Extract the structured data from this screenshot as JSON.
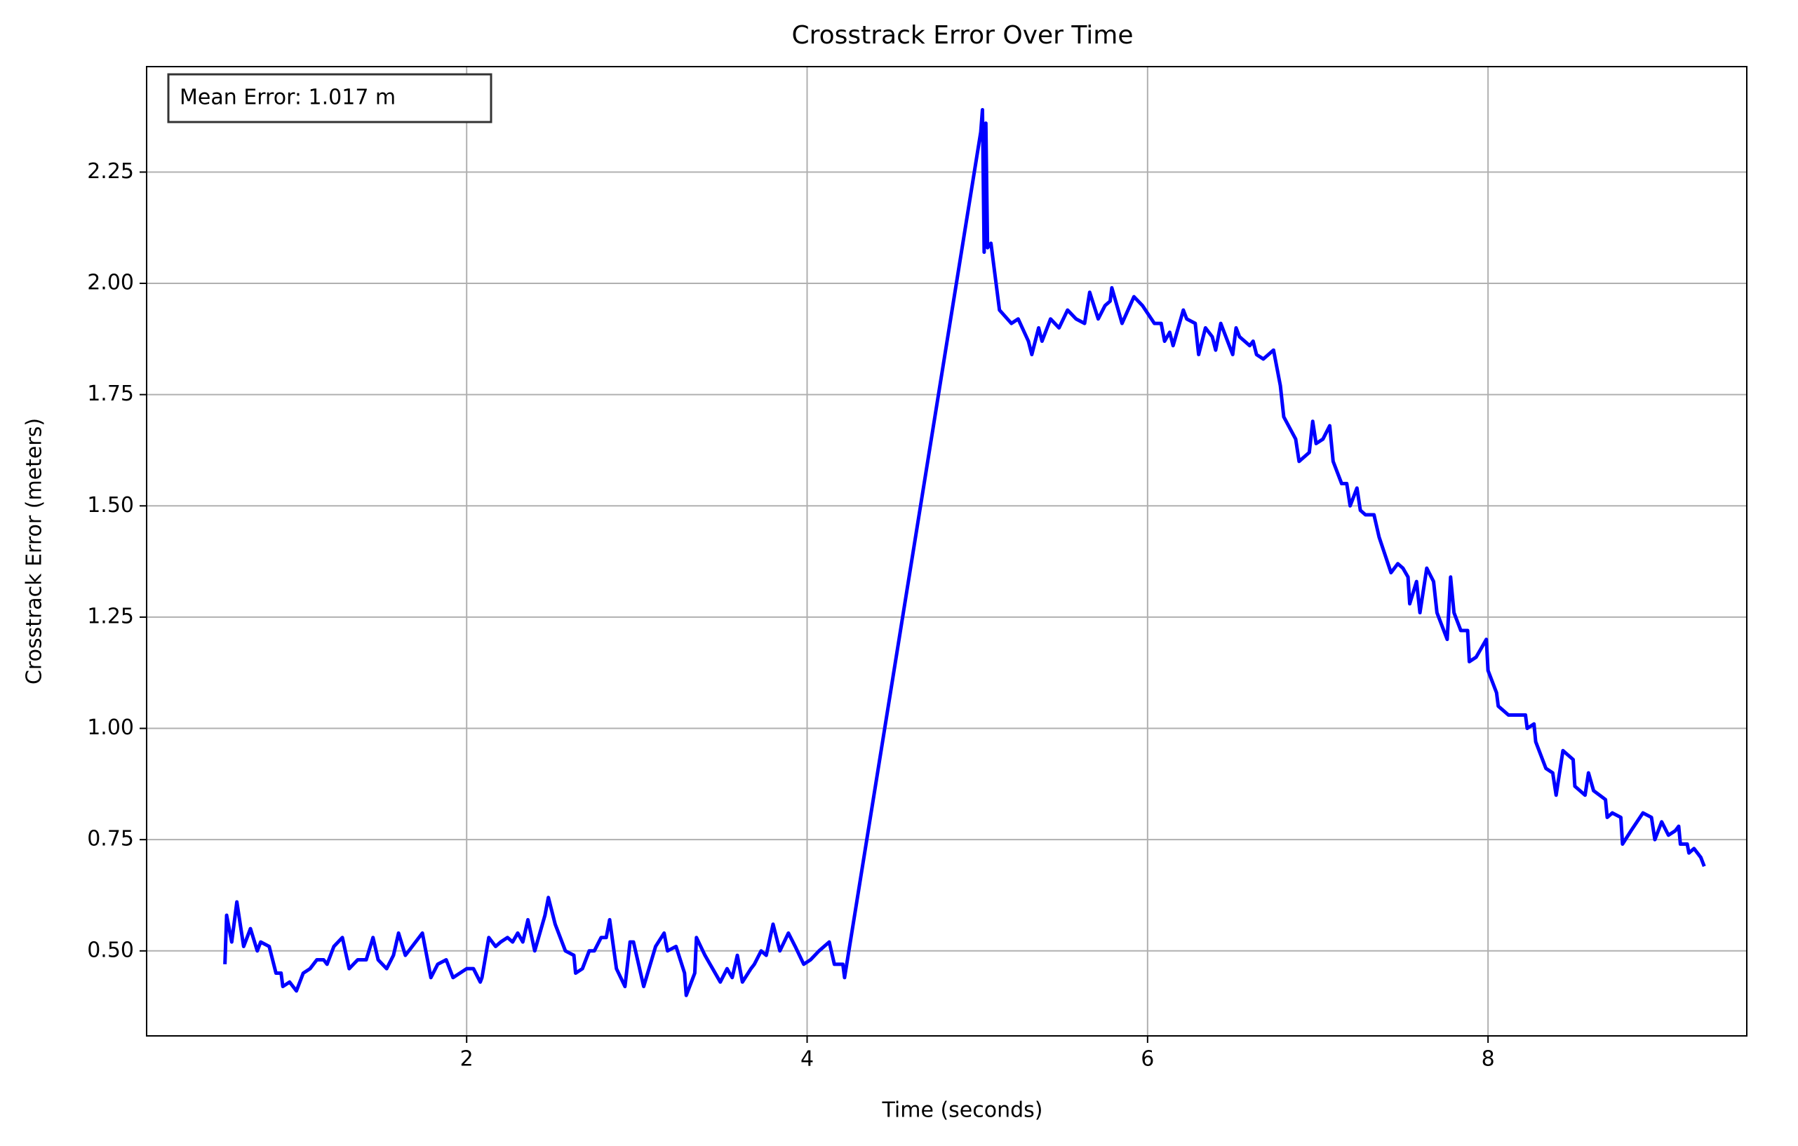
{
  "chart_data": {
    "type": "line",
    "title": "Crosstrack Error Over Time",
    "x_label": "Time (seconds)",
    "y_label": "Crosstrack Error (meters)",
    "annotation": "Mean Error: 1.017 m",
    "xlim": [
      0.12,
      9.52
    ],
    "ylim": [
      0.309,
      2.487
    ],
    "xticks": [
      2,
      4,
      6,
      8
    ],
    "yticks": [
      {
        "value": 0.5,
        "label": "0.50"
      },
      {
        "value": 0.75,
        "label": "0.75"
      },
      {
        "value": 1.0,
        "label": "1.00"
      },
      {
        "value": 1.25,
        "label": "1.25"
      },
      {
        "value": 1.5,
        "label": "1.50"
      },
      {
        "value": 1.75,
        "label": "1.75"
      },
      {
        "value": 2.0,
        "label": "2.00"
      },
      {
        "value": 2.25,
        "label": "2.25"
      }
    ],
    "grid": true,
    "series": [
      {
        "color": "#0000ff",
        "x": [
          0.58,
          0.59,
          0.62,
          0.65,
          0.69,
          0.73,
          0.77,
          0.79,
          0.84,
          0.88,
          0.91,
          0.92,
          0.96,
          1.0,
          1.04,
          1.08,
          1.12,
          1.16,
          1.18,
          1.22,
          1.27,
          1.31,
          1.36,
          1.41,
          1.45,
          1.48,
          1.53,
          1.57,
          1.6,
          1.64,
          1.68,
          1.72,
          1.74,
          1.79,
          1.83,
          1.88,
          1.92,
          1.96,
          2.0,
          2.04,
          2.08,
          2.09,
          2.13,
          2.17,
          2.2,
          2.24,
          2.27,
          2.3,
          2.33,
          2.36,
          2.4,
          2.46,
          2.48,
          2.52,
          2.58,
          2.63,
          2.64,
          2.68,
          2.72,
          2.75,
          2.79,
          2.82,
          2.84,
          2.88,
          2.93,
          2.96,
          2.98,
          3.04,
          3.11,
          3.16,
          3.18,
          3.23,
          3.28,
          3.29,
          3.34,
          3.35,
          3.4,
          3.43,
          3.49,
          3.53,
          3.56,
          3.59,
          3.62,
          3.67,
          3.69,
          3.73,
          3.76,
          3.8,
          3.84,
          3.89,
          3.93,
          3.98,
          4.02,
          4.07,
          4.13,
          4.16,
          4.21,
          4.22,
          5.02,
          5.03,
          5.04,
          5.05,
          5.06,
          5.08,
          5.13,
          5.2,
          5.24,
          5.3,
          5.32,
          5.36,
          5.38,
          5.43,
          5.48,
          5.53,
          5.58,
          5.63,
          5.66,
          5.71,
          5.75,
          5.78,
          5.79,
          5.85,
          5.92,
          5.97,
          6.04,
          6.08,
          6.1,
          6.13,
          6.15,
          6.21,
          6.23,
          6.28,
          6.3,
          6.34,
          6.38,
          6.4,
          6.43,
          6.5,
          6.52,
          6.54,
          6.6,
          6.62,
          6.64,
          6.68,
          6.74,
          6.78,
          6.8,
          6.87,
          6.89,
          6.95,
          6.97,
          6.99,
          7.03,
          7.07,
          7.09,
          7.14,
          7.17,
          7.19,
          7.23,
          7.25,
          7.28,
          7.33,
          7.36,
          7.43,
          7.47,
          7.5,
          7.53,
          7.54,
          7.58,
          7.6,
          7.64,
          7.68,
          7.7,
          7.76,
          7.78,
          7.8,
          7.84,
          7.88,
          7.89,
          7.93,
          7.99,
          8.0,
          8.05,
          8.06,
          8.12,
          8.18,
          8.22,
          8.23,
          8.27,
          8.28,
          8.34,
          8.38,
          8.4,
          8.44,
          8.5,
          8.51,
          8.57,
          8.59,
          8.62,
          8.69,
          8.7,
          8.73,
          8.78,
          8.79,
          8.84,
          8.91,
          8.96,
          8.98,
          9.02,
          9.06,
          9.1,
          9.12,
          9.13,
          9.17,
          9.18,
          9.21,
          9.25,
          9.27
        ],
        "values": [
          0.47,
          0.58,
          0.52,
          0.61,
          0.51,
          0.55,
          0.5,
          0.52,
          0.51,
          0.45,
          0.45,
          0.42,
          0.43,
          0.41,
          0.45,
          0.46,
          0.48,
          0.48,
          0.47,
          0.51,
          0.53,
          0.46,
          0.48,
          0.48,
          0.53,
          0.48,
          0.46,
          0.49,
          0.54,
          0.49,
          0.51,
          0.53,
          0.54,
          0.44,
          0.47,
          0.48,
          0.44,
          0.45,
          0.46,
          0.46,
          0.43,
          0.44,
          0.53,
          0.51,
          0.52,
          0.53,
          0.52,
          0.54,
          0.52,
          0.57,
          0.5,
          0.58,
          0.62,
          0.56,
          0.5,
          0.49,
          0.45,
          0.46,
          0.5,
          0.5,
          0.53,
          0.53,
          0.57,
          0.46,
          0.42,
          0.52,
          0.52,
          0.42,
          0.51,
          0.54,
          0.5,
          0.51,
          0.45,
          0.4,
          0.45,
          0.53,
          0.49,
          0.47,
          0.43,
          0.46,
          0.44,
          0.49,
          0.43,
          0.46,
          0.47,
          0.5,
          0.49,
          0.56,
          0.5,
          0.54,
          0.51,
          0.47,
          0.48,
          0.5,
          0.52,
          0.47,
          0.47,
          0.44,
          2.34,
          2.39,
          2.07,
          2.36,
          2.08,
          2.09,
          1.94,
          1.91,
          1.92,
          1.87,
          1.84,
          1.9,
          1.87,
          1.92,
          1.9,
          1.94,
          1.92,
          1.91,
          1.98,
          1.92,
          1.95,
          1.96,
          1.99,
          1.91,
          1.97,
          1.95,
          1.91,
          1.91,
          1.87,
          1.89,
          1.86,
          1.94,
          1.92,
          1.91,
          1.84,
          1.9,
          1.88,
          1.85,
          1.91,
          1.84,
          1.9,
          1.88,
          1.86,
          1.87,
          1.84,
          1.83,
          1.85,
          1.77,
          1.7,
          1.65,
          1.6,
          1.62,
          1.69,
          1.64,
          1.65,
          1.68,
          1.6,
          1.55,
          1.55,
          1.5,
          1.54,
          1.49,
          1.48,
          1.48,
          1.43,
          1.35,
          1.37,
          1.36,
          1.34,
          1.28,
          1.33,
          1.26,
          1.36,
          1.33,
          1.26,
          1.2,
          1.34,
          1.26,
          1.22,
          1.22,
          1.15,
          1.16,
          1.2,
          1.13,
          1.08,
          1.05,
          1.03,
          1.03,
          1.03,
          1.0,
          1.01,
          0.97,
          0.91,
          0.9,
          0.85,
          0.95,
          0.93,
          0.87,
          0.85,
          0.9,
          0.86,
          0.84,
          0.8,
          0.81,
          0.8,
          0.74,
          0.77,
          0.81,
          0.8,
          0.75,
          0.79,
          0.76,
          0.77,
          0.78,
          0.74,
          0.74,
          0.72,
          0.73,
          0.71,
          0.69
        ]
      }
    ]
  }
}
